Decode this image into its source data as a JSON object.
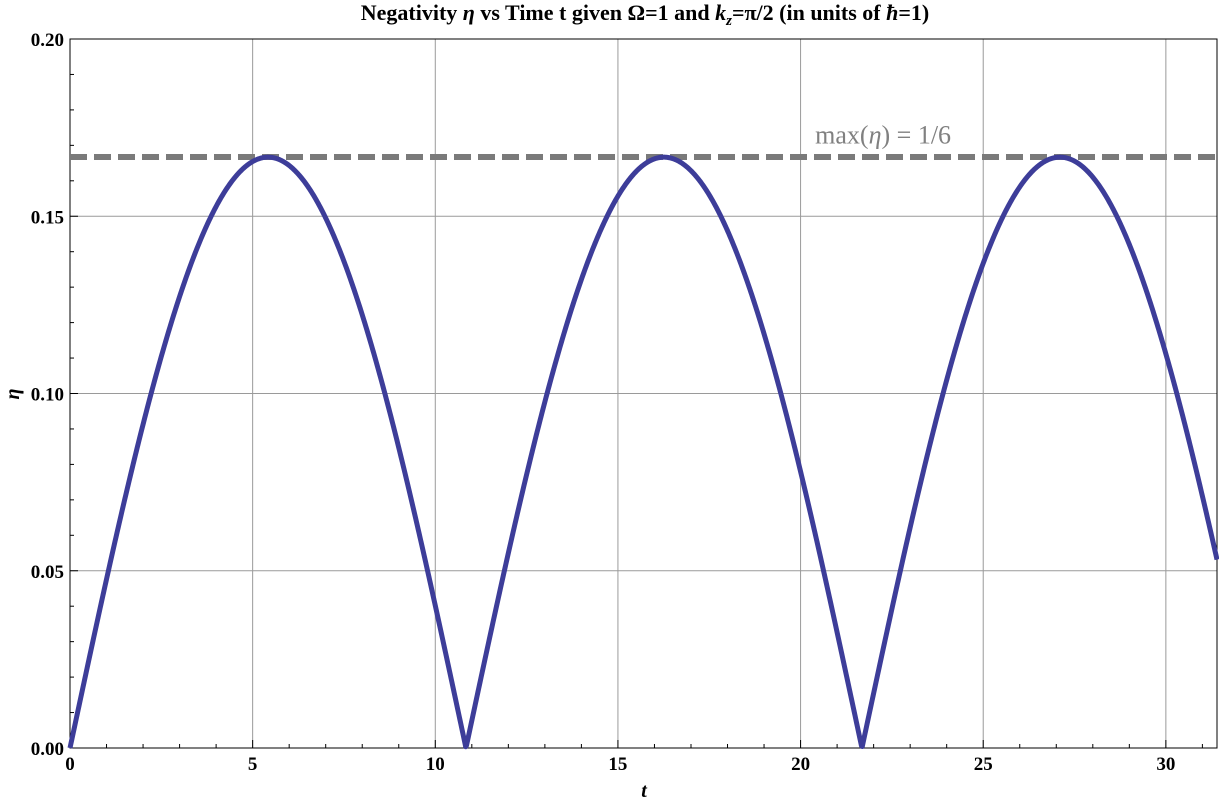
{
  "chart_data": {
    "type": "line",
    "title_parts": {
      "pre": "Negativity ",
      "eta": "η",
      "mid1": " vs Time t given Ω=1 and ",
      "k": "k",
      "z": "z",
      "mid2": "=π/2 (in units of ",
      "hbar": "ħ",
      "post": "=1)"
    },
    "xlabel": "t",
    "ylabel": "η",
    "xlim": [
      0,
      31.4
    ],
    "ylim": [
      0,
      0.2
    ],
    "xticks": [
      0,
      5,
      10,
      15,
      20,
      25,
      30
    ],
    "xtick_labels": [
      "0",
      "5",
      "10",
      "15",
      "20",
      "25",
      "30"
    ],
    "yticks": [
      0,
      0.05,
      0.1,
      0.15,
      0.2
    ],
    "ytick_labels": [
      "0.00",
      "0.05",
      "0.10",
      "0.15",
      "0.20"
    ],
    "grid": true,
    "series": [
      {
        "color": "#3d3d99",
        "style": "solid",
        "model": "eta(t) = (1/6) * |sin(pi * t / 10.84)|",
        "x": [
          0,
          1,
          2,
          3,
          4,
          5,
          5.42,
          6,
          7,
          8,
          9,
          10,
          10.84,
          12,
          13,
          14,
          15,
          16,
          16.26,
          17,
          18,
          19,
          20,
          21,
          21.68,
          22,
          23,
          24,
          25,
          26,
          27.1,
          28,
          29,
          30,
          31.4
        ],
        "y": [
          0,
          0.048,
          0.09,
          0.124,
          0.151,
          0.166,
          0.1667,
          0.164,
          0.151,
          0.124,
          0.09,
          0.048,
          0,
          0.056,
          0.096,
          0.13,
          0.155,
          0.1665,
          0.1667,
          0.162,
          0.145,
          0.118,
          0.081,
          0.039,
          0,
          0.016,
          0.065,
          0.106,
          0.138,
          0.16,
          0.1667,
          0.1585,
          0.1384,
          0.1075,
          0.0576
        ]
      },
      {
        "color": "#7a7a7a",
        "style": "dashed",
        "x": [
          0,
          31.4
        ],
        "y": [
          0.1667,
          0.1667
        ]
      }
    ],
    "annotation": {
      "text_pre": "max(",
      "text_eta": "η",
      "text_post": ") = 1/6",
      "x": 20.4,
      "y": 0.1705
    }
  }
}
